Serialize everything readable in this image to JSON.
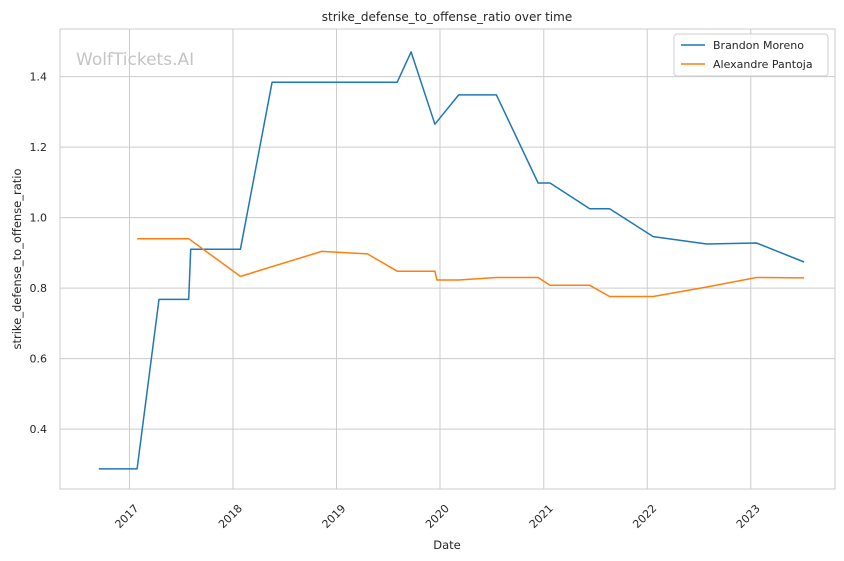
{
  "chart_data": {
    "type": "line",
    "title": "strike_defense_to_offense_ratio over time",
    "xlabel": "Date",
    "ylabel": "strike_defense_to_offense_ratio",
    "watermark": "WolfTickets.AI",
    "grid": true,
    "legend_position": "top-right",
    "xlim": [
      "2016-05-01",
      "2023-10-25"
    ],
    "ylim": [
      0.23,
      1.535
    ],
    "x_ticks": [
      "2017",
      "2018",
      "2019",
      "2020",
      "2021",
      "2022",
      "2023"
    ],
    "y_ticks": [
      0.4,
      0.6,
      0.8,
      1.0,
      1.2,
      1.4
    ],
    "series": [
      {
        "name": "Brandon Moreno",
        "color": "#1f77b4",
        "points": [
          [
            "2016-09-15",
            0.287
          ],
          [
            "2017-01-28",
            0.287
          ],
          [
            "2017-04-15",
            0.768
          ],
          [
            "2017-07-29",
            0.768
          ],
          [
            "2017-08-05",
            0.91
          ],
          [
            "2018-01-27",
            0.91
          ],
          [
            "2018-05-19",
            1.384
          ],
          [
            "2019-08-03",
            1.384
          ],
          [
            "2019-09-21",
            1.47
          ],
          [
            "2019-12-14",
            1.265
          ],
          [
            "2020-03-07",
            1.348
          ],
          [
            "2020-07-18",
            1.348
          ],
          [
            "2020-12-12",
            1.098
          ],
          [
            "2021-01-23",
            1.098
          ],
          [
            "2021-06-12",
            1.025
          ],
          [
            "2021-08-21",
            1.025
          ],
          [
            "2022-01-22",
            0.946
          ],
          [
            "2022-07-30",
            0.925
          ],
          [
            "2023-01-21",
            0.928
          ],
          [
            "2023-07-08",
            0.874
          ]
        ]
      },
      {
        "name": "Alexandre Pantoja",
        "color": "#ff7f0e",
        "points": [
          [
            "2017-01-28",
            0.94
          ],
          [
            "2017-07-29",
            0.94
          ],
          [
            "2018-01-27",
            0.833
          ],
          [
            "2018-11-10",
            0.904
          ],
          [
            "2019-04-20",
            0.897
          ],
          [
            "2019-08-03",
            0.848
          ],
          [
            "2019-12-14",
            0.848
          ],
          [
            "2019-12-21",
            0.823
          ],
          [
            "2020-03-07",
            0.823
          ],
          [
            "2020-07-18",
            0.83
          ],
          [
            "2020-12-12",
            0.83
          ],
          [
            "2021-01-23",
            0.808
          ],
          [
            "2021-06-12",
            0.808
          ],
          [
            "2021-08-21",
            0.776
          ],
          [
            "2022-01-22",
            0.776
          ],
          [
            "2022-07-30",
            0.803
          ],
          [
            "2023-01-21",
            0.83
          ],
          [
            "2023-07-08",
            0.829
          ]
        ]
      }
    ]
  }
}
